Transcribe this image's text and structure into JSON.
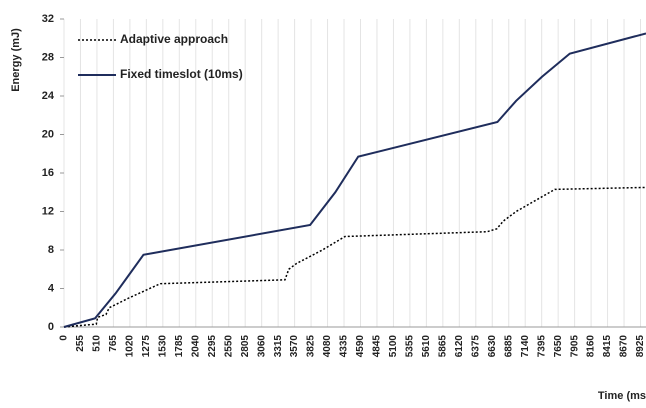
{
  "chart_data": {
    "type": "line",
    "y_label": "Energy (mJ)",
    "x_label": "Time (ms",
    "xlim": [
      0,
      9010
    ],
    "ylim": [
      0,
      32
    ],
    "xticks": [
      0,
      255,
      510,
      765,
      1020,
      1275,
      1530,
      1785,
      2040,
      2295,
      2550,
      2805,
      3060,
      3315,
      3570,
      3825,
      4080,
      4335,
      4590,
      4845,
      5100,
      5355,
      5610,
      5865,
      6120,
      6375,
      6630,
      6885,
      7140,
      7395,
      7650,
      7905,
      8160,
      8415,
      8670,
      8925
    ],
    "yticks": [
      0,
      4,
      8,
      12,
      16,
      20,
      24,
      28,
      32
    ],
    "grid": true,
    "series": [
      {
        "name": "Adaptive approach",
        "color": "#000000",
        "dash": "2,2",
        "x": [
          0,
          500,
          520,
          560,
          650,
          700,
          1000,
          1490,
          3420,
          3480,
          3600,
          4000,
          4350,
          6550,
          6700,
          6800,
          7000,
          7600,
          9010
        ],
        "values": [
          0,
          0.3,
          1,
          1.1,
          1.3,
          2,
          3,
          4.5,
          4.9,
          6,
          6.6,
          8,
          9.4,
          9.9,
          10.2,
          11,
          12,
          14.3,
          14.5
        ]
      },
      {
        "name": "Fixed timeslot (10ms)",
        "color": "#1f2d5c",
        "dash": "none",
        "x": [
          0,
          480,
          800,
          1230,
          3810,
          4200,
          4555,
          6710,
          7000,
          7400,
          7830,
          9010
        ],
        "values": [
          0,
          0.9,
          3.5,
          7.5,
          10.6,
          14,
          17.7,
          21.3,
          23.5,
          26,
          28.4,
          30.5
        ]
      }
    ]
  }
}
